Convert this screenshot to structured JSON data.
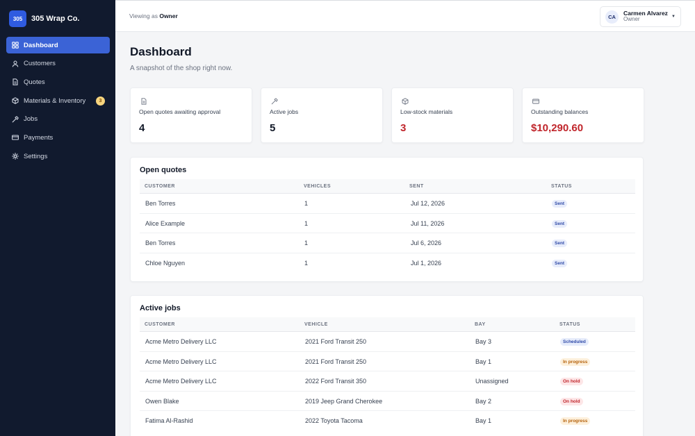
{
  "brand": {
    "logo_text": "305",
    "name": "305 Wrap Co."
  },
  "sidebar": {
    "items": [
      {
        "label": "Dashboard",
        "icon": "grid-icon",
        "active": true
      },
      {
        "label": "Customers",
        "icon": "user-icon"
      },
      {
        "label": "Quotes",
        "icon": "document-icon"
      },
      {
        "label": "Materials & Inventory",
        "icon": "box-icon",
        "badge": "3"
      },
      {
        "label": "Jobs",
        "icon": "hammer-icon"
      },
      {
        "label": "Payments",
        "icon": "credit-card-icon"
      },
      {
        "label": "Settings",
        "icon": "gear-icon"
      }
    ]
  },
  "topbar": {
    "viewing_prefix": "Viewing as",
    "viewing_role": "Owner",
    "user": {
      "initials": "CA",
      "name": "Carmen Alvarez",
      "role": "Owner"
    }
  },
  "page": {
    "title": "Dashboard",
    "subtitle": "A snapshot of the shop right now."
  },
  "stats": [
    {
      "label": "Open quotes awaiting approval",
      "value": "4",
      "icon": "document-icon",
      "highlight": false
    },
    {
      "label": "Active jobs",
      "value": "5",
      "icon": "hammer-icon",
      "highlight": false
    },
    {
      "label": "Low-stock materials",
      "value": "3",
      "icon": "box-icon",
      "highlight": true
    },
    {
      "label": "Outstanding balances",
      "value": "$10,290.60",
      "icon": "credit-card-icon",
      "highlight": true
    }
  ],
  "open_quotes": {
    "title": "Open quotes",
    "columns": [
      "CUSTOMER",
      "VEHICLES",
      "SENT",
      "STATUS"
    ],
    "rows": [
      {
        "customer": "Ben Torres",
        "vehicles": "1",
        "sent": "Jul 12, 2026",
        "status": "Sent"
      },
      {
        "customer": "Alice Example",
        "vehicles": "1",
        "sent": "Jul 11, 2026",
        "status": "Sent"
      },
      {
        "customer": "Ben Torres",
        "vehicles": "1",
        "sent": "Jul 6, 2026",
        "status": "Sent"
      },
      {
        "customer": "Chloe Nguyen",
        "vehicles": "1",
        "sent": "Jul 1, 2026",
        "status": "Sent"
      }
    ]
  },
  "active_jobs": {
    "title": "Active jobs",
    "columns": [
      "CUSTOMER",
      "VEHICLE",
      "BAY",
      "STATUS"
    ],
    "rows": [
      {
        "customer": "Acme Metro Delivery LLC",
        "vehicle": "2021 Ford Transit 250",
        "bay": "Bay 3",
        "status": "Scheduled"
      },
      {
        "customer": "Acme Metro Delivery LLC",
        "vehicle": "2021 Ford Transit 250",
        "bay": "Bay 1",
        "status": "In progress"
      },
      {
        "customer": "Acme Metro Delivery LLC",
        "vehicle": "2022 Ford Transit 350",
        "bay": "Unassigned",
        "status": "On hold"
      },
      {
        "customer": "Owen Blake",
        "vehicle": "2019 Jeep Grand Cherokee",
        "bay": "Bay 2",
        "status": "On hold"
      },
      {
        "customer": "Fatima Al-Rashid",
        "vehicle": "2022 Toyota Tacoma",
        "bay": "Bay 1",
        "status": "In progress"
      }
    ]
  },
  "colors": {
    "sidebar_bg": "#111a2e",
    "accent": "#3b63d6",
    "danger": "#c0252b",
    "warning": "#b5620c"
  }
}
